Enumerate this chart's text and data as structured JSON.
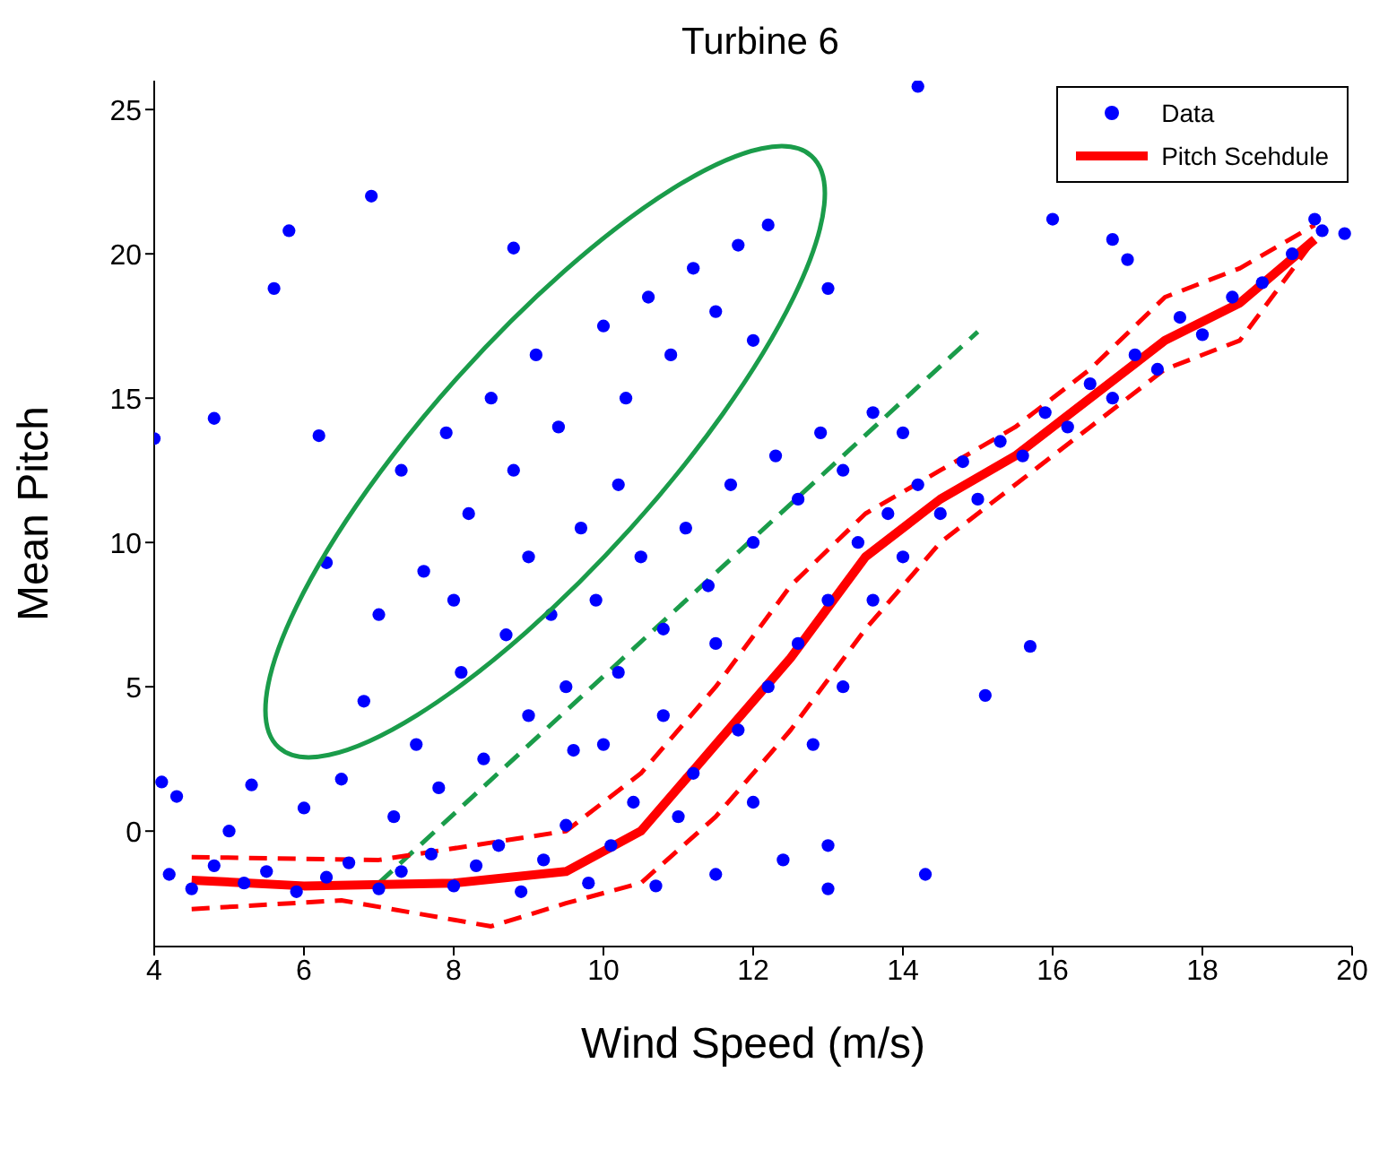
{
  "chart_data": {
    "type": "scatter",
    "title": "Turbine 6",
    "xlabel": "Wind Speed (m/s)",
    "ylabel": "Mean Pitch",
    "xlim": [
      4,
      20
    ],
    "xticks": [
      4,
      6,
      8,
      10,
      12,
      14,
      16,
      18,
      20
    ],
    "ylim": [
      -4,
      26
    ],
    "yticks": [
      0,
      5,
      10,
      15,
      20,
      25
    ],
    "legend": "top right",
    "series": [
      {
        "name": "Data",
        "color": "#0000ff",
        "marker": "circle",
        "x": [
          4.2,
          4.5,
          4.8,
          5.2,
          5.5,
          5.9,
          6.3,
          6.6,
          7,
          7.3,
          7.7,
          8,
          8.3,
          8.6,
          8.9,
          9.2,
          9.5,
          9.8,
          10.1,
          10.4,
          10.7,
          11,
          11.2,
          11.5,
          11.8,
          12,
          12.2,
          12.4,
          12.6,
          12.8,
          13,
          13,
          13.2,
          13.4,
          13.6,
          13.8,
          14,
          14.2,
          14.5,
          14.8,
          15,
          15.3,
          15.6,
          15.9,
          16.2,
          16.5,
          16.8,
          17.1,
          17.4,
          17.7,
          18,
          18.4,
          18.8,
          19.2,
          19.6,
          5,
          5.3,
          6,
          6.5,
          6.8,
          7.2,
          7.5,
          7.8,
          8.1,
          8.4,
          8.7,
          9,
          9.3,
          9.6,
          9.9,
          10.2,
          10.5,
          10.8,
          11.1,
          11.4,
          11.7,
          12,
          12.3,
          12.6,
          12.9,
          13.2,
          13.6,
          14,
          9.5,
          10,
          10.8,
          11.5,
          7,
          7.3,
          7.6,
          7.9,
          8.2,
          8.5,
          8.8,
          9.1,
          9.4,
          9.7,
          10,
          10.3,
          10.6,
          10.9,
          11.2,
          11.5,
          11.8,
          12.2,
          12,
          8,
          9,
          10.2,
          6.3,
          4,
          4.8,
          5.6,
          5.8,
          6.9,
          6.2,
          8.8,
          14.2,
          19.5,
          19.9,
          15.7,
          15.1,
          14.3,
          13,
          4.1,
          4.3,
          16,
          17,
          16.8,
          13
        ],
        "values": [
          -1.5,
          -2,
          -1.2,
          -1.8,
          -1.4,
          -2.1,
          -1.6,
          -1.1,
          -2,
          -1.4,
          -0.8,
          -1.9,
          -1.2,
          -0.5,
          -2.1,
          -1,
          0.2,
          -1.8,
          -0.5,
          1,
          -1.9,
          0.5,
          2,
          -1.5,
          3.5,
          1,
          5,
          -1,
          6.5,
          3,
          8,
          -0.5,
          5,
          10,
          8,
          11,
          9.5,
          12,
          11,
          12.8,
          11.5,
          13.5,
          13,
          14.5,
          14,
          15.5,
          15,
          16.5,
          16,
          17.8,
          17.2,
          18.5,
          19,
          20,
          20.8,
          0,
          1.6,
          0.8,
          1.8,
          4.5,
          0.5,
          3,
          1.5,
          5.5,
          2.5,
          6.8,
          4,
          7.5,
          2.8,
          8,
          5.5,
          9.5,
          7,
          10.5,
          8.5,
          12,
          10,
          13,
          11.5,
          13.8,
          12.5,
          14.5,
          13.8,
          5,
          3,
          4,
          6.5,
          7.5,
          12.5,
          9,
          13.8,
          11,
          15,
          12.5,
          16.5,
          14,
          10.5,
          17.5,
          15,
          18.5,
          16.5,
          19.5,
          18,
          20.3,
          21,
          17,
          8,
          9.5,
          12,
          9.3,
          13.6,
          14.3,
          18.8,
          20.8,
          22,
          13.7,
          20.2,
          25.8,
          21.2,
          20.7,
          6.4,
          4.7,
          -1.5,
          -2,
          1.7,
          1.2,
          21.2,
          19.8,
          20.5,
          18.8
        ]
      },
      {
        "name": "Pitch Scehdule",
        "type": "line",
        "color": "#ff0000",
        "marker": "none",
        "line_style": "solid",
        "x": [
          4.5,
          6,
          8,
          9.5,
          10.5,
          11.5,
          12.5,
          13.5,
          14.5,
          15.5,
          16.5,
          17.5,
          18.5,
          19.5
        ],
        "values": [
          -1.7,
          -1.9,
          -1.8,
          -1.4,
          0,
          3,
          6,
          9.5,
          11.5,
          13,
          15,
          17,
          18.3,
          20.5
        ]
      },
      {
        "type": "line",
        "color": "#ff0000",
        "marker": "none",
        "line_style": "dashed",
        "x": [
          4.5,
          7,
          9.5,
          10.5,
          11.5,
          12.5,
          13.5,
          14.5,
          15.5,
          16.5,
          17.5,
          18.5,
          19.5
        ],
        "values": [
          -0.9,
          -1,
          0,
          2,
          5,
          8.5,
          11,
          12.5,
          14,
          16,
          18.5,
          19.5,
          21
        ]
      },
      {
        "type": "line",
        "color": "#ff0000",
        "marker": "none",
        "line_style": "dashed",
        "x": [
          4.5,
          6.5,
          8.5,
          9.5,
          10.5,
          11.5,
          12.5,
          13.5,
          14.5,
          15.5,
          16.5,
          17.5,
          18.5,
          19.5
        ],
        "values": [
          -2.7,
          -2.4,
          -3.3,
          -2.5,
          -1.8,
          0.5,
          3.5,
          7,
          10,
          12,
          14,
          16,
          17,
          20.5
        ]
      },
      {
        "type": "line",
        "color": "#1a9c4a",
        "marker": "none",
        "line_style": "dashed",
        "x": [
          7,
          15
        ],
        "values": [
          -1.8,
          17.3
        ]
      }
    ]
  }
}
